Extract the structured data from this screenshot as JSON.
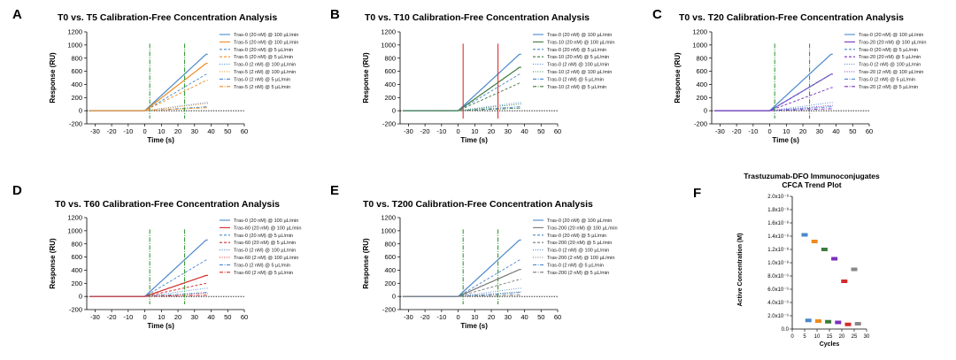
{
  "chart_data": [
    {
      "panel": "A",
      "type": "line",
      "title": "T0 vs. T5 Calibration-Free Concentration Analysis",
      "xlabel": "Time (s)",
      "ylabel": "Response (RU)",
      "xlim": [
        -35,
        60
      ],
      "ylim": [
        -200,
        1200
      ],
      "xticks": [
        -30,
        -20,
        -10,
        0,
        10,
        20,
        30,
        40,
        50,
        60
      ],
      "yticks": [
        -200,
        0,
        200,
        400,
        600,
        800,
        1000,
        1200
      ],
      "injection_markers": {
        "x": [
          3,
          24
        ],
        "color": "#3a9a3a"
      },
      "series": [
        {
          "name": "Tras-0 (20 nM) @ 100 µL/min",
          "color": "#4a88cc",
          "dash": "solid",
          "plateau": 860
        },
        {
          "name": "Tras-5 (20 nM) @ 100 µL/min",
          "color": "#ee8a1e",
          "dash": "solid",
          "plateau": 720
        },
        {
          "name": "Tras-0 (20 nM) @ 5 µL/min",
          "color": "#4a88cc",
          "dash": "dash",
          "plateau": 555
        },
        {
          "name": "Tras-5 (20 nM) @ 5 µL/min",
          "color": "#ee8a1e",
          "dash": "dash",
          "plateau": 460
        },
        {
          "name": "Tras-0 (2 nM) @ 100 µL/min",
          "color": "#4a88cc",
          "dash": "dot",
          "plateau": 125
        },
        {
          "name": "Tras-5 (2 nM) @ 100 µL/min",
          "color": "#ee8a1e",
          "dash": "dot",
          "plateau": 110
        },
        {
          "name": "Tras-0 (2 nM) @ 5 µL/min",
          "color": "#4a88cc",
          "dash": "dashdot",
          "plateau": 60
        },
        {
          "name": "Tras-5 (2 nM) @ 5 µL/min",
          "color": "#ee8a1e",
          "dash": "dashdot",
          "plateau": 45
        }
      ]
    },
    {
      "panel": "B",
      "type": "line",
      "title": "T0 vs. T10 Calibration-Free Concentration Analysis",
      "xlabel": "Time (s)",
      "ylabel": "Response (RU)",
      "xlim": [
        -35,
        60
      ],
      "ylim": [
        -200,
        1200
      ],
      "xticks": [
        -30,
        -20,
        -10,
        0,
        10,
        20,
        30,
        40,
        50,
        60
      ],
      "yticks": [
        -200,
        0,
        200,
        400,
        600,
        800,
        1000,
        1200
      ],
      "injection_markers": {
        "x": [
          3,
          24
        ],
        "color": "#e03030"
      },
      "series": [
        {
          "name": "Tras-0 (20 nM) @ 100 µL/min",
          "color": "#4a88cc",
          "dash": "solid",
          "plateau": 860
        },
        {
          "name": "Tras-10 (20 nM) @ 100 µL/min",
          "color": "#3d7a3d",
          "dash": "solid",
          "plateau": 660
        },
        {
          "name": "Tras-0 (20 nM) @ 5 µL/min",
          "color": "#4a88cc",
          "dash": "dash",
          "plateau": 555
        },
        {
          "name": "Tras-10 (20 nM) @ 5 µL/min",
          "color": "#3d7a3d",
          "dash": "dash",
          "plateau": 420
        },
        {
          "name": "Tras-0 (2 nM) @ 100 µL/min",
          "color": "#4a88cc",
          "dash": "dot",
          "plateau": 125
        },
        {
          "name": "Tras-10 (2 nM) @ 100 µL/min",
          "color": "#3d7a3d",
          "dash": "dot",
          "plateau": 100
        },
        {
          "name": "Tras-0 (2 nM) @ 5 µL/min",
          "color": "#4a88cc",
          "dash": "dashdot",
          "plateau": 60
        },
        {
          "name": "Tras-10 (2 nM) @ 5 µL/min",
          "color": "#3d7a3d",
          "dash": "dashdot",
          "plateau": 40
        }
      ]
    },
    {
      "panel": "C",
      "type": "line",
      "title": "T0 vs. T20 Calibration-Free Concentration Analysis",
      "xlabel": "Time (s)",
      "ylabel": "Response (RU)",
      "xlim": [
        -35,
        60
      ],
      "ylim": [
        -200,
        1200
      ],
      "xticks": [
        -30,
        -20,
        -10,
        0,
        10,
        20,
        30,
        40,
        50,
        60
      ],
      "yticks": [
        -200,
        0,
        200,
        400,
        600,
        800,
        1000,
        1200
      ],
      "injection_markers": {
        "x": [
          3,
          24
        ],
        "color": "#3a9a3a"
      },
      "series": [
        {
          "name": "Tras-0 (20 nM) @ 100 µL/min",
          "color": "#4a88cc",
          "dash": "solid",
          "plateau": 860
        },
        {
          "name": "Tras-20 (20 nM) @ 100 µL/min",
          "color": "#7b2fbe",
          "dash": "solid",
          "plateau": 555
        },
        {
          "name": "Tras-0 (20 nM) @ 5 µL/min",
          "color": "#4a88cc",
          "dash": "dash",
          "plateau": 555
        },
        {
          "name": "Tras-20 (20 nM) @ 5 µL/min",
          "color": "#7b2fbe",
          "dash": "dash",
          "plateau": 350
        },
        {
          "name": "Tras-0 (2 nM) @ 100 µL/min",
          "color": "#4a88cc",
          "dash": "dot",
          "plateau": 125
        },
        {
          "name": "Tras-20 (2 nM) @ 100 µL/min",
          "color": "#7b2fbe",
          "dash": "dot",
          "plateau": 80
        },
        {
          "name": "Tras-0 (2 nM) @ 5 µL/min",
          "color": "#4a88cc",
          "dash": "dashdot",
          "plateau": 60
        },
        {
          "name": "Tras-20 (2 nM) @ 5 µL/min",
          "color": "#7b2fbe",
          "dash": "dashdot",
          "plateau": 30
        }
      ]
    },
    {
      "panel": "D",
      "type": "line",
      "title": "T0 vs. T60 Calibration-Free Concentration Analysis",
      "xlabel": "Time (s)",
      "ylabel": "Response (RU)",
      "xlim": [
        -35,
        60
      ],
      "ylim": [
        -200,
        1200
      ],
      "xticks": [
        -30,
        -20,
        -10,
        0,
        10,
        20,
        30,
        40,
        50,
        60
      ],
      "yticks": [
        -200,
        0,
        200,
        400,
        600,
        800,
        1000,
        1200
      ],
      "injection_markers": {
        "x": [
          3,
          24
        ],
        "color": "#3a9a3a"
      },
      "series": [
        {
          "name": "Tras-0 (20 nM) @ 100 µL/min",
          "color": "#4a88cc",
          "dash": "solid",
          "plateau": 860
        },
        {
          "name": "Tras-60 (20 nM) @ 100 µL/min",
          "color": "#d42a2a",
          "dash": "solid",
          "plateau": 320
        },
        {
          "name": "Tras-0 (20 nM) @ 5 µL/min",
          "color": "#4a88cc",
          "dash": "dash",
          "plateau": 555
        },
        {
          "name": "Tras-60 (20 nM) @ 5 µL/min",
          "color": "#d42a2a",
          "dash": "dash",
          "plateau": 200
        },
        {
          "name": "Tras-0 (2 nM) @ 100 µL/min",
          "color": "#4a88cc",
          "dash": "dot",
          "plateau": 125
        },
        {
          "name": "Tras-60 (2 nM) @ 100 µL/min",
          "color": "#d42a2a",
          "dash": "dot",
          "plateau": 50
        },
        {
          "name": "Tras-0 (2 nM) @ 5 µL/min",
          "color": "#4a88cc",
          "dash": "dashdot",
          "plateau": 60
        },
        {
          "name": "Tras-60 (2 nM) @ 5 µL/min",
          "color": "#d42a2a",
          "dash": "dashdot",
          "plateau": 20
        }
      ]
    },
    {
      "panel": "E",
      "type": "line",
      "title": "T0 vs. T200 Calibration-Free Concentration Analysis",
      "xlabel": "Time (s)",
      "ylabel": "Response (RU)",
      "xlim": [
        -35,
        60
      ],
      "ylim": [
        -200,
        1200
      ],
      "xticks": [
        -30,
        -20,
        -10,
        0,
        10,
        20,
        30,
        40,
        50,
        60
      ],
      "yticks": [
        -200,
        0,
        200,
        400,
        600,
        800,
        1000,
        1200
      ],
      "injection_markers": {
        "x": [
          3,
          24
        ],
        "color": "#3a9a3a"
      },
      "series": [
        {
          "name": "Tras-0 (20 nM) @ 100 µL/min",
          "color": "#4a88cc",
          "dash": "solid",
          "plateau": 860
        },
        {
          "name": "Tras-200 (20 nM) @ 100 µL/min",
          "color": "#777777",
          "dash": "solid",
          "plateau": 410
        },
        {
          "name": "Tras-0 (20 nM) @ 5 µL/min",
          "color": "#4a88cc",
          "dash": "dash",
          "plateau": 555
        },
        {
          "name": "Tras-200 (20 nM) @ 5 µL/min",
          "color": "#777777",
          "dash": "dash",
          "plateau": 260
        },
        {
          "name": "Tras-0 (2 nM) @ 100 µL/min",
          "color": "#4a88cc",
          "dash": "dot",
          "plateau": 125
        },
        {
          "name": "Tras-200 (2 nM) @ 100 µL/min",
          "color": "#777777",
          "dash": "dot",
          "plateau": 70
        },
        {
          "name": "Tras-0 (2 nM) @ 5 µL/min",
          "color": "#4a88cc",
          "dash": "dashdot",
          "plateau": 60
        },
        {
          "name": "Tras-200 (2 nM) @ 5 µL/min",
          "color": "#777777",
          "dash": "dashdot",
          "plateau": 25
        }
      ]
    },
    {
      "panel": "F",
      "type": "scatter",
      "title": "Trastuzumab-DFO Immunoconjugates",
      "subtitle": "CFCA Trend Plot",
      "xlabel": "Cycles",
      "ylabel": "Active Concentration (M)",
      "xlim": [
        0,
        30
      ],
      "ylim": [
        0,
        2e-08
      ],
      "xticks": [
        0,
        5,
        10,
        15,
        20,
        25,
        30
      ],
      "xtick_labels": [
        "0",
        "5",
        "10",
        "15",
        "20",
        "25",
        "30"
      ],
      "yticks": [
        0,
        2e-09,
        4e-09,
        6e-09,
        8e-09,
        1e-08,
        1.2e-08,
        1.4e-08,
        1.6e-08,
        1.8e-08,
        2e-08
      ],
      "ytick_labels": [
        "0.0",
        "2.0x10⁻⁹",
        "4.0x10⁻⁹",
        "6.0x10⁻⁹",
        "8.0x10⁻⁹",
        "1.0x10⁻⁸",
        "1.2x10⁻⁸",
        "1.4x10⁻⁸",
        "1.6x10⁻⁸",
        "1.8x10⁻⁸",
        "2.0x10⁻⁸"
      ],
      "points": [
        {
          "x": 5,
          "y": 1.42e-08,
          "color": "#4a88cc"
        },
        {
          "x": 6.5,
          "y": 1.3e-09,
          "color": "#4a88cc"
        },
        {
          "x": 9,
          "y": 1.32e-08,
          "color": "#ee8a1e"
        },
        {
          "x": 10.5,
          "y": 1.2e-09,
          "color": "#ee8a1e"
        },
        {
          "x": 13,
          "y": 1.2e-08,
          "color": "#3d7a3d"
        },
        {
          "x": 14.5,
          "y": 1.1e-09,
          "color": "#3d7a3d"
        },
        {
          "x": 17,
          "y": 1.06e-08,
          "color": "#7b2fbe"
        },
        {
          "x": 18.5,
          "y": 1e-09,
          "color": "#7b2fbe"
        },
        {
          "x": 21,
          "y": 7.2e-09,
          "color": "#d42a2a"
        },
        {
          "x": 22.5,
          "y": 7e-10,
          "color": "#d42a2a"
        },
        {
          "x": 25,
          "y": 9e-09,
          "color": "#888888"
        },
        {
          "x": 26.5,
          "y": 8e-10,
          "color": "#888888"
        }
      ]
    }
  ]
}
